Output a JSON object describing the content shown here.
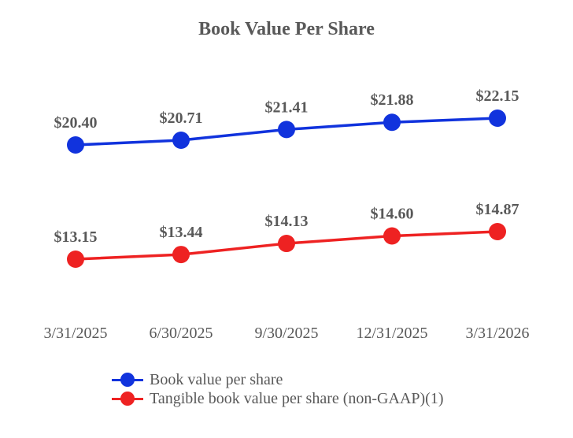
{
  "chart_data": {
    "type": "line",
    "title": "Book Value Per Share",
    "xlabel": "",
    "ylabel": "",
    "categories": [
      "3/31/2025",
      "6/30/2025",
      "9/30/2025",
      "12/31/2025",
      "3/31/2026"
    ],
    "series": [
      {
        "name": "Book value per share",
        "color": "#1133dd",
        "values": [
          20.4,
          20.71,
          21.41,
          21.88,
          22.15
        ],
        "labels": [
          "$20.40",
          "$20.71",
          "$21.41",
          "$21.88",
          "$22.15"
        ]
      },
      {
        "name": "Tangible book value per share (non-GAAP)(1)",
        "color": "#ee2222",
        "values": [
          13.15,
          13.44,
          14.13,
          14.6,
          14.87
        ],
        "labels": [
          "$13.15",
          "$13.44",
          "$14.13",
          "$14.60",
          "$14.87"
        ]
      }
    ],
    "grid": false,
    "y_axis_visible": false,
    "legend_position": "bottom-left",
    "data_labels": true
  },
  "legend": {
    "items": [
      {
        "label": "Book value per share",
        "color": "#1133dd"
      },
      {
        "label": "Tangible book value per share (non-GAAP)(1)",
        "color": "#ee2222"
      }
    ]
  }
}
